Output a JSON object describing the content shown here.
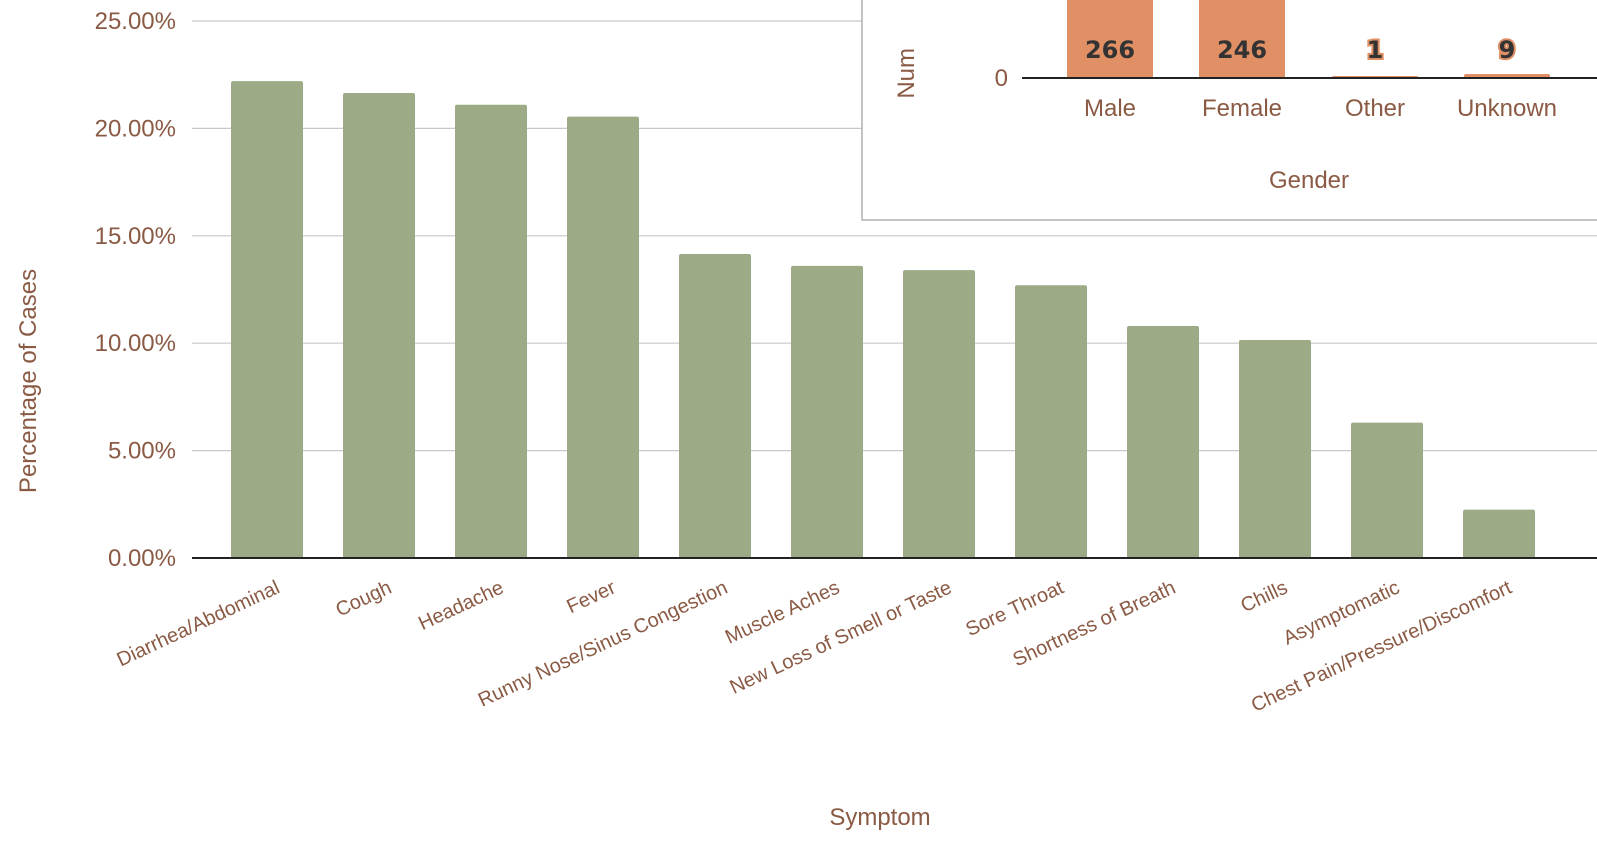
{
  "chart_data": [
    {
      "type": "bar",
      "title": "",
      "xlabel": "Symptom",
      "ylabel": "Percentage of Cases",
      "categories": [
        "Diarrhea/Abdominal",
        "Cough",
        "Headache",
        "Fever",
        "Runny Nose/Sinus Congestion",
        "Muscle Aches",
        "New Loss of Smell or Taste",
        "Sore Throat",
        "Shortness of Breath",
        "Chills",
        "Asymptomatic",
        "Chest Pain/Pressure/Discomfort"
      ],
      "values": [
        22.2,
        21.65,
        21.1,
        20.55,
        14.15,
        13.6,
        13.4,
        12.7,
        10.8,
        10.15,
        6.3,
        2.25
      ],
      "ylim": [
        0,
        25
      ],
      "yticks": [
        "0.00%",
        "5.00%",
        "10.00%",
        "15.00%",
        "20.00%",
        "25.00%"
      ],
      "grid": true,
      "bar_color": "#9cab86"
    },
    {
      "type": "bar",
      "title": "",
      "xlabel": "Gender",
      "ylabel": "Num",
      "categories": [
        "Male",
        "Female",
        "Other",
        "Unknown"
      ],
      "values": [
        266,
        246,
        1,
        9
      ],
      "data_labels": [
        "266",
        "246",
        "1",
        "9"
      ],
      "yticks": [
        "0"
      ],
      "bar_color": "#e09064"
    }
  ]
}
